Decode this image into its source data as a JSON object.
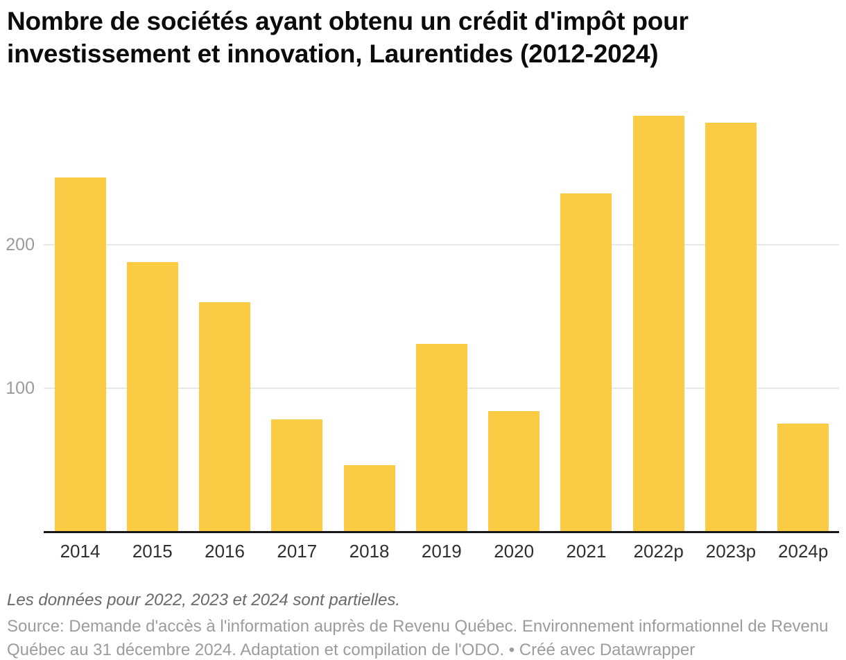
{
  "header": {
    "title": "Nombre de sociétés ayant obtenu un crédit d'impôt pour investissement et innovation, Laurentides (2012-2024)"
  },
  "chart_data": {
    "type": "bar",
    "title": "Nombre de sociétés ayant obtenu un crédit d'impôt pour investissement et innovation, Laurentides (2012-2024)",
    "categories": [
      "2014",
      "2015",
      "2016",
      "2017",
      "2018",
      "2019",
      "2020",
      "2021",
      "2022p",
      "2023p",
      "2024p"
    ],
    "values": [
      247,
      188,
      160,
      78,
      46,
      131,
      84,
      236,
      290,
      285,
      75
    ],
    "xlabel": "",
    "ylabel": "",
    "yticks": [
      100,
      200
    ],
    "ylim": [
      0,
      298
    ],
    "grid": true,
    "legend": "none",
    "bar_color": "#fbcb43"
  },
  "footer": {
    "notes": "Les données pour 2022, 2023 et 2024 sont partielles.",
    "source": "Source: Demande d'accès à l'information auprès de Revenu Québec. Environnement informationnel de Revenu Québec au 31 décembre 2024. Adaptation et compilation de l'ODO. • Créé avec Datawrapper"
  },
  "colors": {
    "bar": "#fbcb43",
    "grid": "#e8e8e8",
    "axis_line": "#181818",
    "y_tick_label": "#9b9b9b",
    "x_tick_label": "#2f2f2f"
  }
}
